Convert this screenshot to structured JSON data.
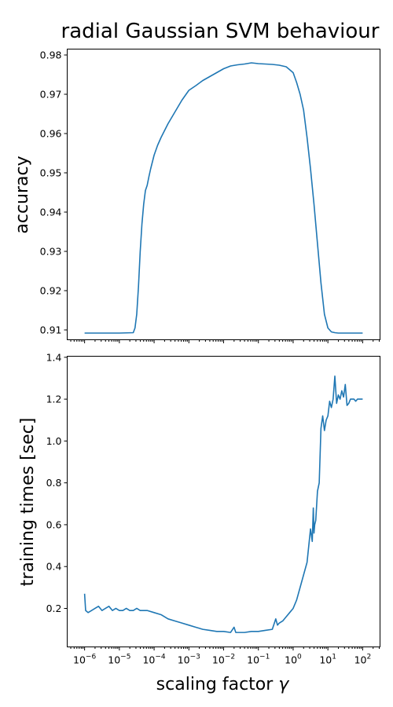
{
  "figure_title": "radial Gaussian SVM behaviour",
  "colors": {
    "series": "#1f77b4",
    "axes": "#000000",
    "background": "#ffffff"
  },
  "chart_data": [
    {
      "type": "line",
      "id": "accuracy",
      "ylabel": "accuracy",
      "xscale": "log",
      "xlim": [
        3.16e-07,
        316
      ],
      "ylim": [
        0.9075,
        0.9815
      ],
      "yticks": [
        0.91,
        0.92,
        0.93,
        0.94,
        0.95,
        0.96,
        0.97,
        0.98
      ],
      "ytick_labels": [
        "0.91",
        "0.92",
        "0.93",
        "0.94",
        "0.95",
        "0.96",
        "0.97",
        "0.98"
      ],
      "grid": false,
      "series": [
        {
          "x_log10": [
            -6,
            -5,
            -4.6,
            -4.55,
            -4.5,
            -4.45,
            -4.4,
            -4.35,
            -4.3,
            -4.25,
            -4.2,
            -4.15,
            -4.1,
            -4.0,
            -3.9,
            -3.8,
            -3.6,
            -3.4,
            -3.2,
            -3.0,
            -2.8,
            -2.6,
            -2.4,
            -2.2,
            -2.0,
            -1.8,
            -1.6,
            -1.4,
            -1.2,
            -1.0,
            -0.8,
            -0.6,
            -0.4,
            -0.2,
            0.0,
            0.1,
            0.2,
            0.3,
            0.4,
            0.5,
            0.6,
            0.7,
            0.8,
            0.9,
            1.0,
            1.1,
            1.2,
            1.3,
            1.5,
            2.0
          ],
          "values": [
            0.9092,
            0.9092,
            0.9093,
            0.9105,
            0.914,
            0.921,
            0.93,
            0.937,
            0.942,
            0.9455,
            0.9468,
            0.949,
            0.951,
            0.9545,
            0.957,
            0.959,
            0.9625,
            0.9655,
            0.9685,
            0.971,
            0.9722,
            0.9735,
            0.9745,
            0.9755,
            0.9765,
            0.9772,
            0.9775,
            0.9777,
            0.978,
            0.9778,
            0.9777,
            0.9776,
            0.9774,
            0.977,
            0.9755,
            0.973,
            0.97,
            0.966,
            0.959,
            0.951,
            0.942,
            0.932,
            0.922,
            0.914,
            0.9105,
            0.9095,
            0.9093,
            0.9092,
            0.9092,
            0.9092
          ]
        }
      ]
    },
    {
      "type": "line",
      "id": "training_times",
      "ylabel": "training times [sec]",
      "xlabel_prefix": "scaling factor ",
      "xlabel_symbol": "γ",
      "xscale": "log",
      "xlim": [
        3.16e-07,
        316
      ],
      "ylim": [
        0.016,
        1.405
      ],
      "yticks": [
        0.2,
        0.4,
        0.6,
        0.8,
        1.0,
        1.2,
        1.4
      ],
      "ytick_labels": [
        "0.2",
        "0.4",
        "0.6",
        "0.8",
        "1.0",
        "1.2",
        "1.4"
      ],
      "xtick_base": "10",
      "xtick_exponents": [
        "−6",
        "−5",
        "−4",
        "−3",
        "−2",
        "−1",
        "0",
        "1",
        "2"
      ],
      "grid": false,
      "series": [
        {
          "x_log10": [
            -6,
            -5.97,
            -5.9,
            -5.8,
            -5.7,
            -5.6,
            -5.5,
            -5.4,
            -5.3,
            -5.2,
            -5.1,
            -5.0,
            -4.9,
            -4.8,
            -4.7,
            -4.6,
            -4.5,
            -4.4,
            -4.3,
            -4.2,
            -4.0,
            -3.8,
            -3.6,
            -3.4,
            -3.2,
            -3.0,
            -2.8,
            -2.6,
            -2.4,
            -2.2,
            -2.0,
            -1.8,
            -1.7,
            -1.65,
            -1.6,
            -1.4,
            -1.2,
            -1.0,
            -0.8,
            -0.6,
            -0.5,
            -0.45,
            -0.4,
            -0.3,
            -0.2,
            -0.1,
            0.0,
            0.1,
            0.2,
            0.3,
            0.4,
            0.5,
            0.55,
            0.58,
            0.6,
            0.62,
            0.65,
            0.7,
            0.75,
            0.8,
            0.85,
            0.9,
            0.95,
            1.0,
            1.05,
            1.1,
            1.15,
            1.2,
            1.25,
            1.3,
            1.35,
            1.4,
            1.45,
            1.5,
            1.55,
            1.6,
            1.65,
            1.7,
            1.75,
            1.8,
            1.85,
            1.9,
            1.95,
            2.0
          ],
          "values": [
            0.27,
            0.19,
            0.18,
            0.19,
            0.2,
            0.21,
            0.19,
            0.2,
            0.21,
            0.19,
            0.2,
            0.19,
            0.19,
            0.2,
            0.19,
            0.19,
            0.2,
            0.19,
            0.19,
            0.19,
            0.18,
            0.17,
            0.15,
            0.14,
            0.13,
            0.12,
            0.11,
            0.1,
            0.095,
            0.09,
            0.09,
            0.085,
            0.11,
            0.085,
            0.085,
            0.085,
            0.09,
            0.09,
            0.095,
            0.1,
            0.15,
            0.12,
            0.13,
            0.14,
            0.16,
            0.18,
            0.2,
            0.24,
            0.3,
            0.36,
            0.42,
            0.58,
            0.52,
            0.68,
            0.56,
            0.6,
            0.62,
            0.76,
            0.8,
            1.06,
            1.12,
            1.05,
            1.1,
            1.12,
            1.19,
            1.16,
            1.2,
            1.31,
            1.18,
            1.22,
            1.2,
            1.24,
            1.21,
            1.27,
            1.17,
            1.18,
            1.2,
            1.2,
            1.2,
            1.19,
            1.2,
            1.2,
            1.2,
            1.2
          ]
        }
      ]
    }
  ]
}
